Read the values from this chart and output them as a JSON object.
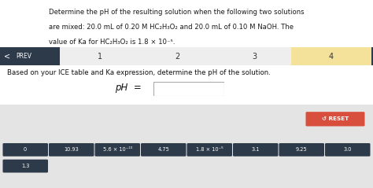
{
  "bg_color": "#f5f5f5",
  "white_bg": "#ffffff",
  "header_text_lines": [
    "Determine the pH of the resulting solution when the following two solutions",
    "are mixed: 20.0 mL of 0.20 M HC₂H₃O₂ and 20.0 mL of 0.10 M NaOH. The",
    "value of Ka for HC₂H₃O₂ is 1.8 × 10⁻⁵."
  ],
  "nav_bg": "#2d3a4a",
  "nav_highlight": "#f5e29a",
  "question_text": "Based on your ICE table and Ka expression, determine the pH of the solution.",
  "ph_label": "pH  =",
  "box_color": "#2d3a4a",
  "box_text_color": "#ffffff",
  "buttons": [
    "0",
    "10.93",
    "5.6 × 10⁻¹⁰",
    "4.75",
    "1.8 × 10⁻⁵",
    "3.1",
    "9.25",
    "3.0"
  ],
  "buttons_row2": [
    "1.3"
  ],
  "reset_color": "#d94f3d",
  "reset_text": "↺ RESET",
  "bottom_bg": "#e4e4e4"
}
